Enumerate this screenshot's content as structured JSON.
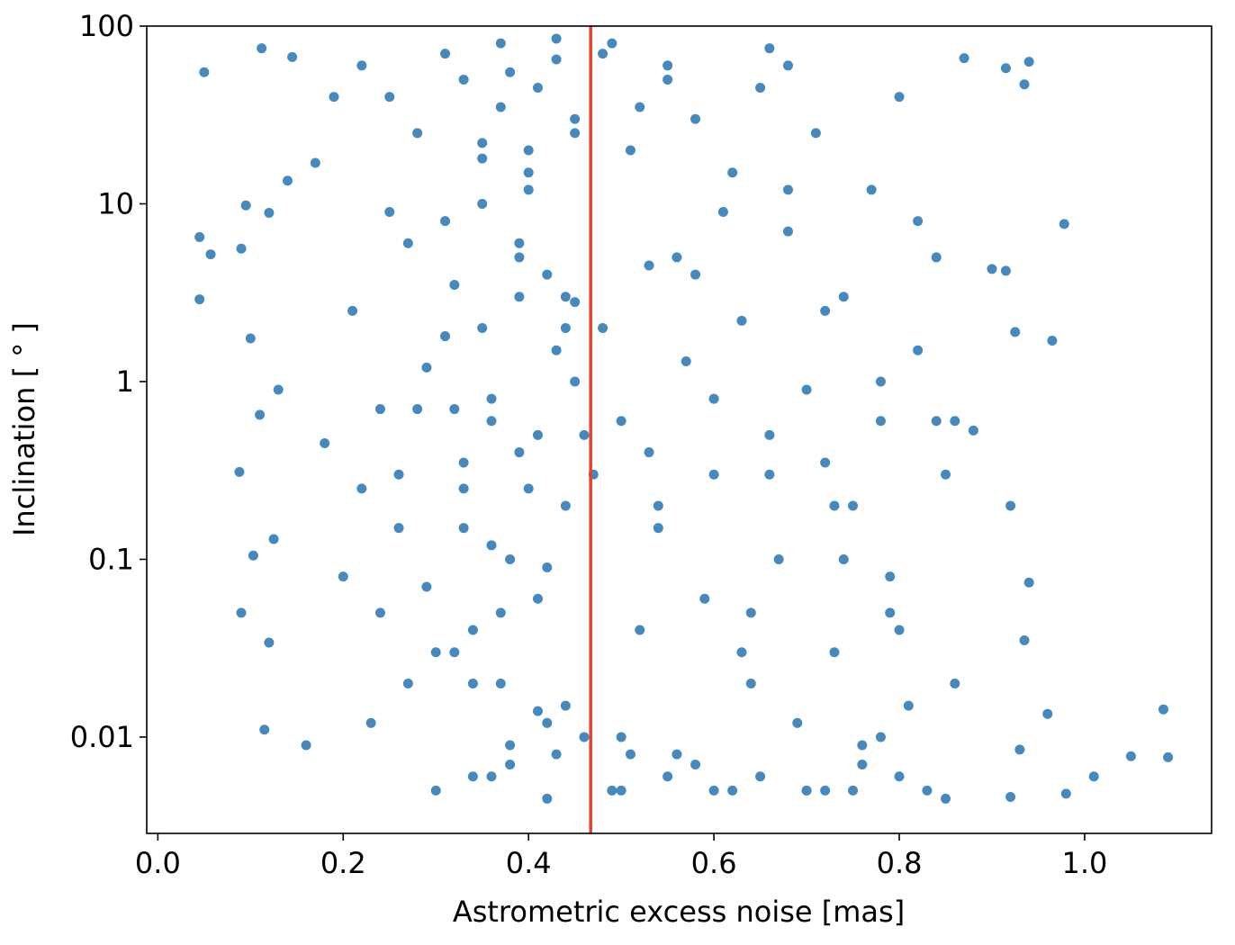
{
  "chart_data": {
    "type": "scatter",
    "x_label": "Astrometric excess noise [mas]",
    "y_label": "Inclination [ ° ]",
    "color": "#4689be",
    "x": [
      0.05,
      0.045,
      0.045,
      0.057,
      0.09,
      0.095,
      0.088,
      0.09,
      0.103,
      0.1,
      0.11,
      0.112,
      0.115,
      0.12,
      0.12,
      0.125,
      0.13,
      0.14,
      0.145,
      0.16,
      0.978,
      1.05,
      1.09,
      1.085,
      0.96,
      1.01,
      0.98,
      0.965,
      0.925,
      0.94,
      0.935,
      0.94,
      0.935,
      0.915,
      0.9,
      0.915,
      0.87,
      0.88,
      0.92,
      0.93,
      0.92,
      0.17,
      0.18,
      0.19,
      0.2,
      0.21,
      0.22,
      0.23,
      0.24,
      0.25,
      0.26,
      0.27,
      0.28,
      0.29,
      0.3,
      0.31,
      0.32,
      0.33,
      0.34,
      0.35,
      0.36,
      0.37,
      0.38,
      0.39,
      0.4,
      0.41,
      0.42,
      0.43,
      0.44,
      0.45,
      0.46,
      0.3,
      0.31,
      0.32,
      0.33,
      0.34,
      0.35,
      0.36,
      0.37,
      0.38,
      0.39,
      0.4,
      0.41,
      0.42,
      0.43,
      0.44,
      0.45,
      0.46,
      0.33,
      0.35,
      0.37,
      0.39,
      0.41,
      0.43,
      0.45,
      0.34,
      0.36,
      0.38,
      0.4,
      0.42,
      0.44,
      0.48,
      0.49,
      0.5,
      0.51,
      0.52,
      0.53,
      0.54,
      0.55,
      0.56,
      0.57,
      0.58,
      0.59,
      0.6,
      0.61,
      0.62,
      0.63,
      0.64,
      0.65,
      0.66,
      0.67,
      0.68,
      0.69,
      0.7,
      0.71,
      0.72,
      0.73,
      0.74,
      0.75,
      0.76,
      0.77,
      0.78,
      0.79,
      0.8,
      0.81,
      0.82,
      0.83,
      0.84,
      0.85,
      0.48,
      0.5,
      0.52,
      0.54,
      0.56,
      0.58,
      0.6,
      0.62,
      0.64,
      0.66,
      0.68,
      0.7,
      0.72,
      0.74,
      0.76,
      0.78,
      0.8,
      0.82,
      0.84,
      0.86,
      0.5,
      0.55,
      0.6,
      0.65,
      0.7,
      0.75,
      0.8,
      0.85,
      0.53,
      0.58,
      0.63,
      0.68,
      0.73,
      0.78,
      0.25,
      0.27,
      0.29,
      0.31,
      0.33,
      0.35,
      0.37,
      0.39,
      0.41,
      0.43,
      0.45,
      0.26,
      0.28,
      0.32,
      0.36,
      0.4,
      0.44,
      0.22,
      0.24,
      0.38,
      0.42,
      0.47,
      0.49,
      0.51,
      0.55,
      0.6,
      0.66,
      0.72,
      0.79,
      0.86
    ],
    "values": [
      55,
      6.5,
      2.9,
      5.2,
      5.6,
      9.8,
      0.31,
      0.05,
      0.105,
      1.75,
      0.65,
      75,
      0.011,
      0.034,
      8.9,
      0.13,
      0.9,
      13.5,
      67,
      0.009,
      7.7,
      0.0078,
      0.0077,
      0.0143,
      0.0135,
      0.006,
      0.0048,
      1.7,
      1.9,
      0.074,
      0.035,
      63,
      47,
      58,
      4.3,
      4.2,
      66,
      0.53,
      0.2,
      0.0085,
      0.0046,
      17,
      0.45,
      40,
      0.08,
      2.5,
      60,
      0.012,
      0.7,
      9,
      0.3,
      0.02,
      25,
      1.2,
      0.005,
      70,
      3.5,
      0.15,
      0.04,
      18,
      0.6,
      80,
      0.007,
      5,
      0.25,
      45,
      0.09,
      1.5,
      0.015,
      30,
      0.5,
      0.03,
      8,
      0.7,
      50,
      0.006,
      2,
      0.12,
      35,
      0.009,
      0.4,
      12,
      0.06,
      4,
      85,
      0.2,
      1,
      0.01,
      0.35,
      22,
      0.05,
      6,
      0.014,
      65,
      2.8,
      0.02,
      0.8,
      0.1,
      15,
      0.0045,
      3,
      70,
      0.005,
      0.6,
      20,
      0.04,
      4.5,
      0.15,
      60,
      0.008,
      1.3,
      30,
      0.06,
      0.3,
      9,
      0.005,
      2.2,
      0.02,
      45,
      0.5,
      0.1,
      7,
      0.012,
      0.9,
      25,
      0.005,
      0.03,
      3,
      0.2,
      0.007,
      12,
      0.6,
      0.05,
      40,
      0.015,
      1.5,
      0.005,
      5,
      0.3,
      2,
      0.01,
      35,
      0.2,
      5,
      0.007,
      0.8,
      15,
      0.05,
      0.3,
      60,
      0.005,
      2.5,
      0.1,
      0.009,
      1,
      0.04,
      8,
      0.6,
      0.02,
      0.005,
      0.006,
      0.005,
      0.006,
      0.005,
      0.005,
      0.006,
      0.0045,
      0.4,
      4,
      0.03,
      12,
      0.2,
      0.01,
      40,
      6,
      0.07,
      1.8,
      0.25,
      10,
      0.02,
      3,
      0.5,
      0.008,
      25,
      0.15,
      0.7,
      0.03,
      0.006,
      20,
      2,
      0.25,
      0.05,
      55,
      0.012,
      0.3,
      80,
      0.008,
      50,
      0.8,
      75,
      0.35,
      0.08,
      0.6
    ],
    "xlim": [
      -0.012,
      1.137
    ],
    "ylim": [
      0.00287,
      100
    ],
    "log_y": true,
    "xticks": [
      {
        "value": 0,
        "label": "0.0"
      },
      0.2,
      0.4,
      0.6,
      0.8,
      {
        "value": 1,
        "label": "1.0"
      }
    ],
    "yticks": [
      0.01,
      0.1,
      1,
      10,
      100
    ],
    "vline": {
      "value": 0.467,
      "color": "#e4442c"
    }
  }
}
